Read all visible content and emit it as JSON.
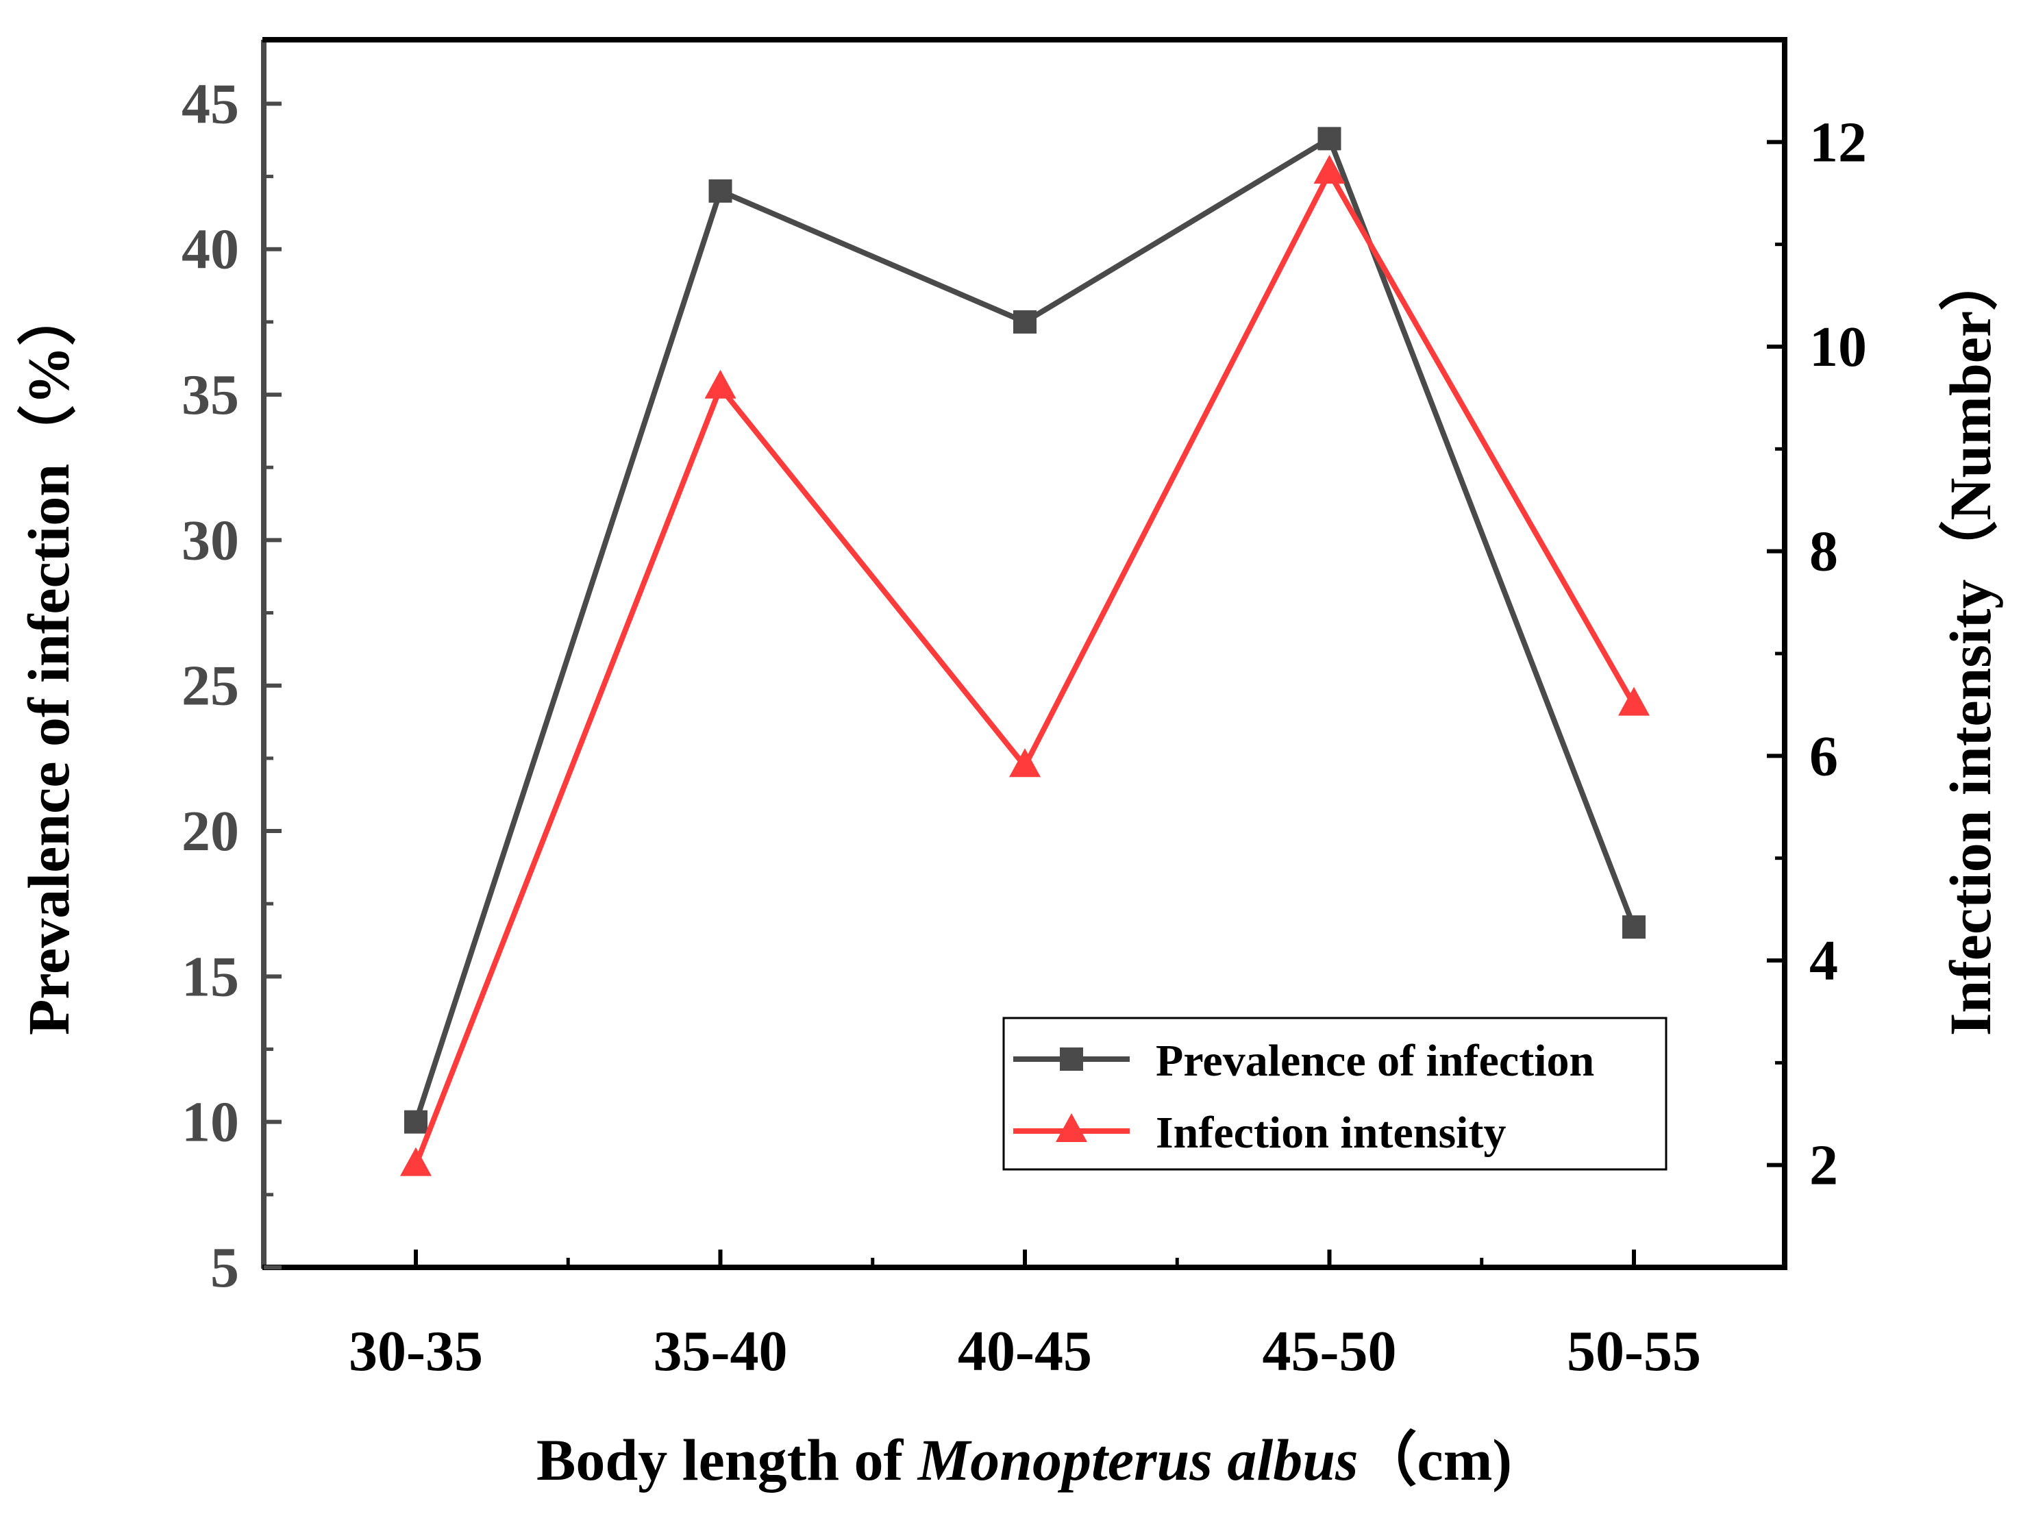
{
  "chart_data": {
    "type": "line",
    "categories": [
      "30-35",
      "35-40",
      "40-45",
      "45-50",
      "50-55"
    ],
    "series": [
      {
        "name": "Prevalence of infection",
        "axis": "left",
        "marker": "square",
        "color": "#4a4a4a",
        "values": [
          10.0,
          42.0,
          37.5,
          43.8,
          16.7
        ]
      },
      {
        "name": "Infection intensity",
        "axis": "right",
        "marker": "triangle",
        "color": "#ff3b3b",
        "values": [
          2.0,
          9.6,
          5.9,
          11.7,
          6.5
        ]
      }
    ],
    "xlabel": {
      "prefix": "Body length of ",
      "italic": "Monopterus albus",
      "suffix": "（cm)"
    },
    "ylabel_left": "Prevalence of infection（%）",
    "ylabel_right": "Infection intensity（Number）",
    "y_left": {
      "lim": [
        5,
        47.2
      ],
      "ticks": [
        5,
        10,
        15,
        20,
        25,
        30,
        35,
        40,
        45
      ],
      "tick_color": "#4a4a4a"
    },
    "y_right": {
      "lim": [
        1,
        13
      ],
      "ticks": [
        2,
        4,
        6,
        8,
        10,
        12
      ],
      "tick_color": "#000000"
    },
    "legend_position": "bottom-right"
  }
}
